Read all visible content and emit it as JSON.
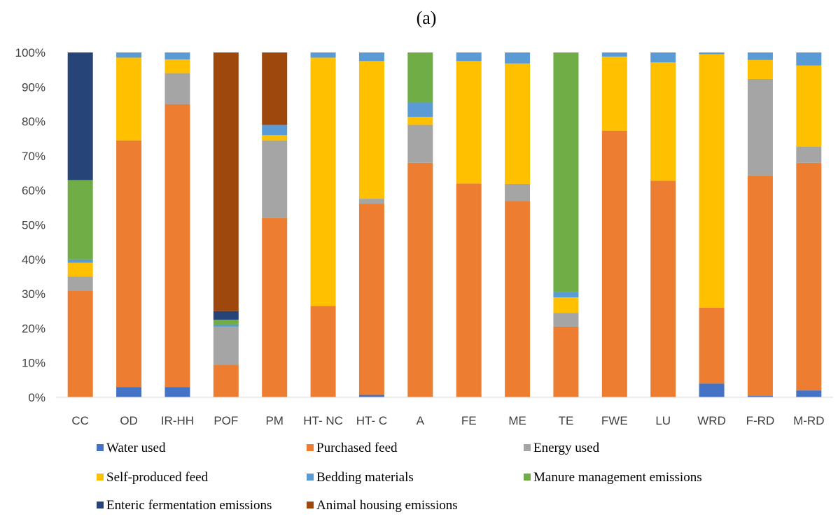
{
  "chart_data": {
    "type": "bar",
    "stacked": true,
    "percent_stacked": true,
    "title": "(a)",
    "xlabel": "",
    "ylabel": "",
    "ylim": [
      0,
      100
    ],
    "yticks": [
      "0%",
      "10%",
      "20%",
      "30%",
      "40%",
      "50%",
      "60%",
      "70%",
      "80%",
      "90%",
      "100%"
    ],
    "grid": false,
    "legend_position": "bottom",
    "categories": [
      "CC",
      "OD",
      "IR-HH",
      "POF",
      "PM",
      "HT- NC",
      "HT- C",
      "A",
      "FE",
      "ME",
      "TE",
      "FWE",
      "LU",
      "WRD",
      "F-RD",
      "M-RD"
    ],
    "series": [
      {
        "name": "Water used",
        "color": "#4472C4",
        "values": [
          0,
          3,
          3,
          0,
          0,
          0,
          0.7,
          0,
          0,
          0,
          0,
          0,
          0,
          4,
          0.4,
          2
        ]
      },
      {
        "name": "Purchased feed",
        "color": "#ED7D31",
        "values": [
          31,
          71.5,
          82,
          9.5,
          52,
          26.5,
          55.5,
          68,
          62,
          57,
          20.5,
          77.5,
          62.8,
          22,
          64,
          66
        ]
      },
      {
        "name": "Energy used",
        "color": "#A5A5A5",
        "values": [
          4,
          0,
          9,
          11,
          22.5,
          0,
          1.5,
          11,
          0,
          5,
          4,
          0,
          0,
          0,
          28,
          4.7
        ]
      },
      {
        "name": "Self-produced feed",
        "color": "#FFC000",
        "values": [
          4,
          24,
          4,
          0,
          1.5,
          72,
          40,
          2.3,
          35.5,
          35,
          4.5,
          21.5,
          34.3,
          73.5,
          5.5,
          23.5
        ]
      },
      {
        "name": "Bedding materials",
        "color": "#5B9BD5",
        "values": [
          1,
          1.5,
          2,
          0.5,
          3,
          1.5,
          2.5,
          4.2,
          2.5,
          3.2,
          1.5,
          1.2,
          2.9,
          0.5,
          2.2,
          3.8
        ]
      },
      {
        "name": "Manure management emissions",
        "color": "#70AD47",
        "values": [
          23,
          0,
          0,
          1.5,
          0,
          0,
          0,
          14.5,
          0,
          0,
          69.5,
          0,
          0,
          0,
          0,
          0
        ]
      },
      {
        "name": "Enteric fermentation emissions",
        "color": "#264478",
        "values": [
          37,
          0,
          0,
          2.5,
          0,
          0,
          0,
          0,
          0,
          0,
          0,
          0,
          0,
          0,
          0,
          0
        ]
      },
      {
        "name": "Animal housing emissions",
        "color": "#9E480E",
        "values": [
          0,
          0,
          0,
          75,
          21,
          0,
          0,
          0,
          0,
          0,
          0,
          0,
          0,
          0,
          0,
          0
        ]
      }
    ]
  }
}
